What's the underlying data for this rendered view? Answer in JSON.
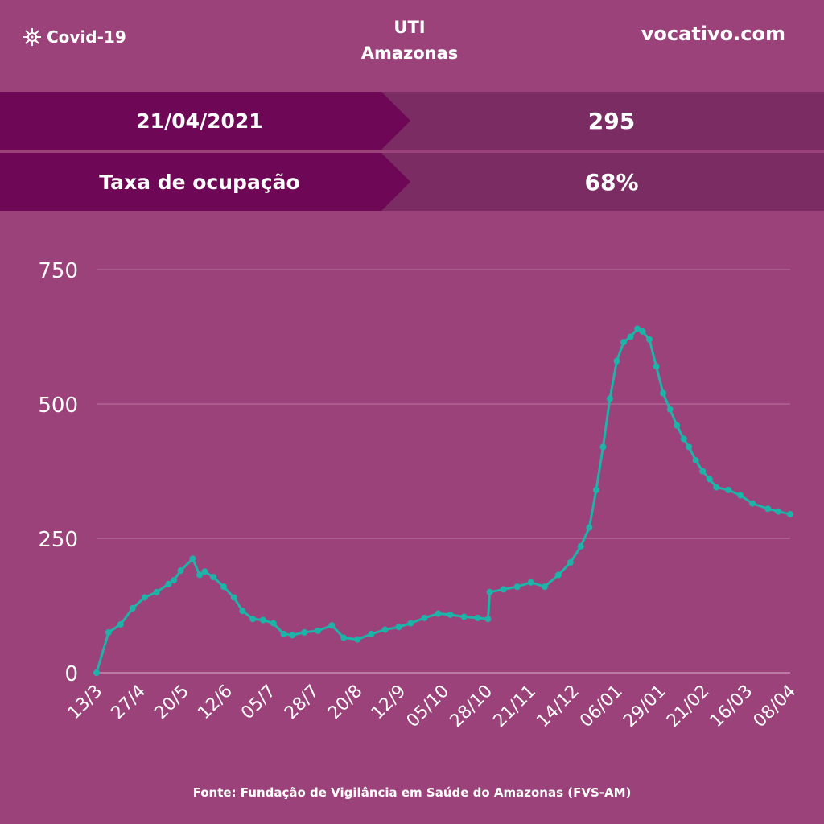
{
  "header": {
    "brand_label": "Covid-19",
    "brand_icon": "virus-icon",
    "title_line1": "UTI",
    "title_line2": "Amazonas",
    "site": "vocativo.com"
  },
  "stats": {
    "date_label": "21/04/2021",
    "date_value": "295",
    "rate_label": "Taxa de ocupação",
    "rate_value": "68%"
  },
  "colors": {
    "background": "#9a4279",
    "label_band": "#6e0756",
    "value_band": "#7a2c63",
    "series": "#1eb3a8"
  },
  "source": "Fonte: Fundação de Vigilância em Saúde do Amazonas (FVS-AM)",
  "chart_data": {
    "type": "line",
    "title": "",
    "xlabel": "",
    "ylabel": "",
    "ylim": [
      0,
      750
    ],
    "yticks": [
      0,
      250,
      500,
      750
    ],
    "grid": true,
    "markers": true,
    "x_ticks": [
      "13/3",
      "27/4",
      "20/5",
      "12/6",
      "05/7",
      "28/7",
      "20/8",
      "12/9",
      "05/10",
      "28/10",
      "21/11",
      "14/12",
      "06/01",
      "29/01",
      "21/02",
      "16/03",
      "08/04"
    ],
    "x": [
      "2020-03-13",
      "2020-03-20",
      "2020-03-27",
      "2020-04-03",
      "2020-04-10",
      "2020-04-17",
      "2020-04-24",
      "2020-04-27",
      "2020-05-01",
      "2020-05-08",
      "2020-05-12",
      "2020-05-15",
      "2020-05-20",
      "2020-05-26",
      "2020-06-01",
      "2020-06-06",
      "2020-06-12",
      "2020-06-18",
      "2020-06-24",
      "2020-06-30",
      "2020-07-05",
      "2020-07-12",
      "2020-07-20",
      "2020-07-28",
      "2020-08-04",
      "2020-08-12",
      "2020-08-20",
      "2020-08-28",
      "2020-09-05",
      "2020-09-12",
      "2020-09-20",
      "2020-09-28",
      "2020-10-05",
      "2020-10-13",
      "2020-10-21",
      "2020-10-27",
      "2020-10-28",
      "2020-11-05",
      "2020-11-13",
      "2020-11-21",
      "2020-11-29",
      "2020-12-07",
      "2020-12-14",
      "2020-12-20",
      "2020-12-25",
      "2020-12-29",
      "2021-01-02",
      "2021-01-06",
      "2021-01-10",
      "2021-01-14",
      "2021-01-18",
      "2021-01-22",
      "2021-01-25",
      "2021-01-29",
      "2021-02-02",
      "2021-02-06",
      "2021-02-10",
      "2021-02-14",
      "2021-02-18",
      "2021-02-21",
      "2021-02-25",
      "2021-03-01",
      "2021-03-05",
      "2021-03-09",
      "2021-03-16",
      "2021-03-23",
      "2021-03-30",
      "2021-04-08",
      "2021-04-14",
      "2021-04-21"
    ],
    "series": [
      {
        "values": [
          0,
          75,
          90,
          120,
          140,
          150,
          165,
          172,
          190,
          212,
          182,
          188,
          178,
          160,
          140,
          115,
          100,
          98,
          92,
          72,
          70,
          75,
          78,
          88,
          65,
          62,
          72,
          80,
          85,
          92,
          102,
          110,
          108,
          104,
          102,
          100,
          150,
          155,
          160,
          168,
          160,
          182,
          205,
          235,
          270,
          340,
          420,
          510,
          580,
          615,
          625,
          640,
          635,
          620,
          570,
          520,
          490,
          460,
          435,
          420,
          395,
          375,
          360,
          345,
          340,
          330,
          315,
          305,
          300,
          295
        ]
      }
    ]
  }
}
